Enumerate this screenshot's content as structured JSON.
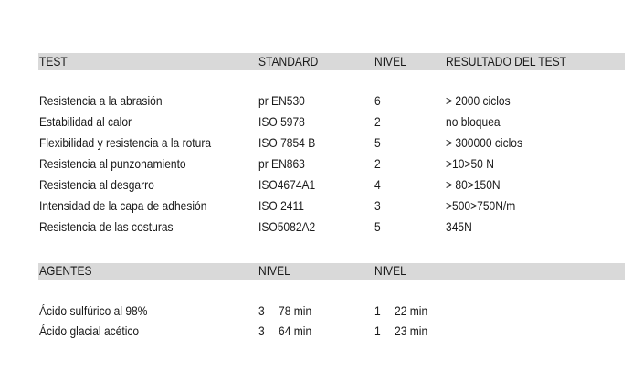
{
  "tests_table": {
    "headers": [
      "TEST",
      "STANDARD",
      "NIVEL",
      "RESULTADO DEL TEST"
    ],
    "rows": [
      [
        "Resistencia a la abrasión",
        "pr EN530",
        "6",
        "> 2000 ciclos"
      ],
      [
        "Estabilidad al calor",
        "ISO 5978",
        "2",
        "no bloquea"
      ],
      [
        "Flexibilidad y resistencia a la rotura",
        "ISO 7854 B",
        "5",
        "> 300000 ciclos"
      ],
      [
        "Resistencia al punzonamiento",
        "pr EN863",
        "2",
        ">10>50 N"
      ],
      [
        "Resistencia al desgarro",
        "ISO4674A1",
        "4",
        "> 80>150N"
      ],
      [
        "Intensidad de la capa de adhesión",
        "ISO 2411",
        "3",
        ">500>750N/m"
      ],
      [
        "Resistencia de las costuras",
        "ISO5082A2",
        "5",
        "345N"
      ]
    ]
  },
  "agents_table": {
    "headers": [
      "AGENTES",
      "NIVEL",
      "NIVEL"
    ],
    "rows": [
      [
        "Ácido sulfúrico al 98%",
        "3",
        "78 min",
        "1",
        "22 min"
      ],
      [
        "Ácido glacial acético",
        "3",
        "64 min",
        "1",
        "23 min"
      ]
    ]
  },
  "colors": {
    "header_bar": "#d9d9d9",
    "text": "#1a1a1a"
  }
}
